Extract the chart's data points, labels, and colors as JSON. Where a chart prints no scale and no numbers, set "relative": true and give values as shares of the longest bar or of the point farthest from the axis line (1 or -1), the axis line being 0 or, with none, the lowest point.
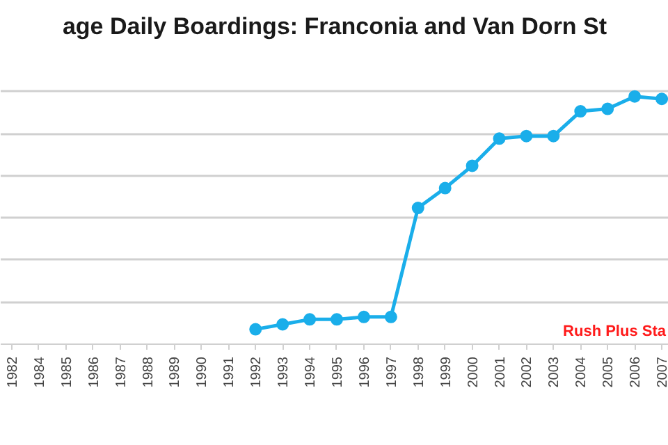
{
  "chart_data": {
    "type": "line",
    "title": "age Daily Boardings: Franconia and Van Dorn St",
    "relative": true,
    "grid": "y",
    "marker": "circle",
    "line_style": "solid",
    "categories": [
      "1982",
      "1984",
      "1985",
      "1986",
      "1987",
      "1988",
      "1989",
      "1990",
      "1991",
      "1992",
      "1993",
      "1994",
      "1995",
      "1996",
      "1997",
      "1998",
      "1999",
      "2000",
      "2001",
      "2002",
      "2003",
      "2004",
      "2005",
      "2006",
      "2007"
    ],
    "series": [
      {
        "color": "#1aaeea",
        "values": [
          null,
          null,
          null,
          null,
          null,
          null,
          null,
          null,
          null,
          0.06,
          0.08,
          0.1,
          0.1,
          0.11,
          0.11,
          0.55,
          0.63,
          0.72,
          0.83,
          0.84,
          0.84,
          0.94,
          0.95,
          1,
          0.99
        ]
      }
    ],
    "annotations": [
      "Rush Plus Sta"
    ]
  }
}
